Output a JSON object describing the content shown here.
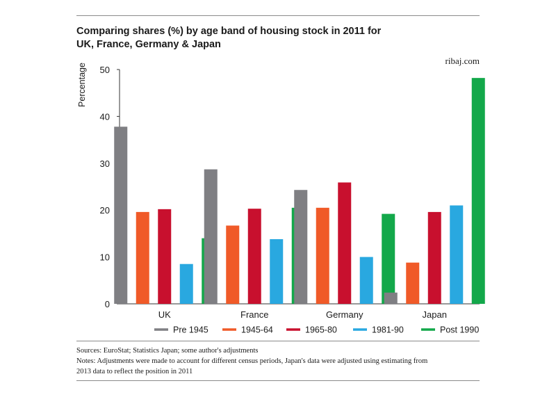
{
  "title_line1": "Comparing shares (%) by age band of housing stock in 2011 for",
  "title_line2": "UK, France, Germany & Japan",
  "source_tag": "ribaj.com",
  "sources": "Sources: EuroStat; Statistics Japan; some author's adjustments",
  "notes_line1": "Notes: Adjustments were made to account for different census periods, Japan's data were adjusted using estimating from",
  "notes_line2": "2013 data to reflect the position in 2011",
  "colors": {
    "Pre 1945": "#7f7f83",
    "1945-64": "#f05a28",
    "1965-80": "#c8102e",
    "1981-90": "#29a8e0",
    "Post 1990": "#13a84a"
  },
  "chart_data": {
    "type": "bar",
    "title": "Comparing shares (%) by age band of housing stock in 2011 for UK, France, Germany & Japan",
    "ylabel": "Percentage",
    "xlabel": "",
    "ylim": [
      0,
      50
    ],
    "yticks": [
      0,
      10,
      20,
      30,
      40,
      50
    ],
    "grid": false,
    "legend_position": "bottom",
    "categories": [
      "UK",
      "France",
      "Germany",
      "Japan"
    ],
    "series": [
      {
        "name": "Pre 1945",
        "values": [
          37.8,
          28.7,
          24.3,
          2.4
        ]
      },
      {
        "name": "1945-64",
        "values": [
          19.6,
          16.7,
          20.5,
          8.8
        ]
      },
      {
        "name": "1965-80",
        "values": [
          20.2,
          20.3,
          25.9,
          19.6
        ]
      },
      {
        "name": "1981-90",
        "values": [
          8.5,
          13.8,
          10.0,
          21.0
        ]
      },
      {
        "name": "Post 1990",
        "values": [
          14.0,
          20.5,
          19.2,
          48.2
        ]
      }
    ]
  }
}
